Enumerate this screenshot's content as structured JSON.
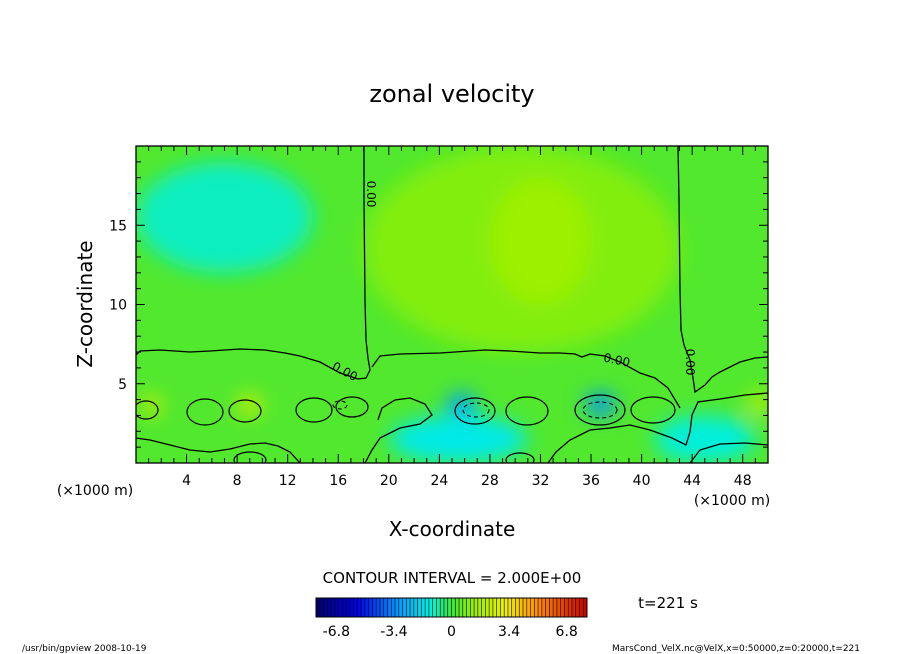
{
  "chart_data": {
    "type": "heatmap",
    "title": "zonal velocity",
    "xlabel": "X-coordinate",
    "ylabel": "Z-coordinate",
    "x_unit": "(×1000 m)",
    "xlim": [
      0,
      50
    ],
    "ylim": [
      0,
      20
    ],
    "x_ticks": [
      "4",
      "8",
      "12",
      "16",
      "20",
      "24",
      "28",
      "32",
      "36",
      "40",
      "44",
      "48"
    ],
    "y_ticks": [
      "5",
      "10",
      "15"
    ],
    "contour_interval": "CONTOUR INTERVAL = 2.000E+00",
    "contour_labels": [
      "0.00",
      "0.00",
      "0.00",
      "0.00"
    ],
    "colorbar_ticks": [
      "-6.8",
      "-3.4",
      "0",
      "3.4",
      "6.8"
    ],
    "colorbar_range": [
      -8,
      8
    ],
    "colormap": "rainbow",
    "time": "t=221 s",
    "regions": [
      {
        "x": [
          0,
          50
        ],
        "z": [
          0,
          20
        ],
        "value": 0.3,
        "note": "background"
      },
      {
        "x": [
          18,
          43
        ],
        "z": [
          7,
          20
        ],
        "value": 1.0
      },
      {
        "x": [
          28,
          36
        ],
        "z": [
          10,
          18
        ],
        "value": 1.4
      },
      {
        "x": [
          0,
          14
        ],
        "z": [
          12,
          19
        ],
        "value": -1.0
      },
      {
        "x": [
          0.5,
          2
        ],
        "z": [
          3,
          4.3
        ],
        "value": 2.6
      },
      {
        "x": [
          8,
          10
        ],
        "z": [
          3,
          4.3
        ],
        "value": 2.6
      },
      {
        "x": [
          24.5,
          27
        ],
        "z": [
          3,
          4.4
        ],
        "value": -3.0
      },
      {
        "x": [
          35.5,
          38
        ],
        "z": [
          3,
          4.4
        ],
        "value": -3.3
      },
      {
        "x": [
          48.5,
          50
        ],
        "z": [
          3,
          4.5
        ],
        "value": 2.4
      },
      {
        "x": [
          20,
          31
        ],
        "z": [
          0,
          3
        ],
        "value": -1.4
      },
      {
        "x": [
          41,
          49
        ],
        "z": [
          0,
          3
        ],
        "value": -1.2
      }
    ]
  },
  "footer": {
    "left": "/usr/bin/gpview  2008-10-19",
    "right": "MarsCond_VelX.nc@VelX,x=0:50000,z=0:20000,t=221"
  }
}
